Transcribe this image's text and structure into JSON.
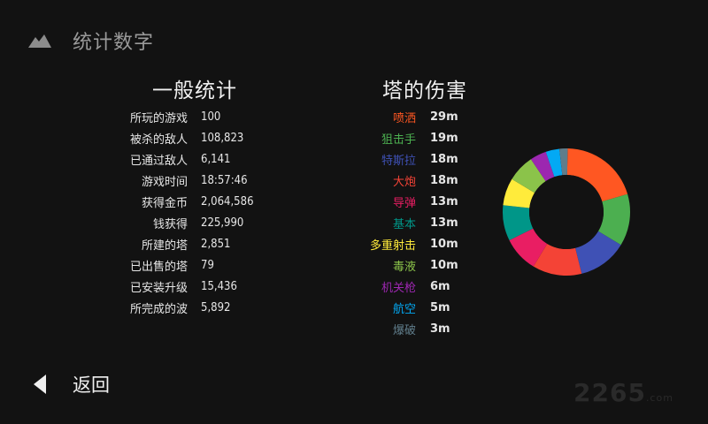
{
  "header": {
    "title": "统计数字"
  },
  "general": {
    "title": "一般统计",
    "rows": [
      {
        "label": "所玩的游戏",
        "value": "100"
      },
      {
        "label": "被杀的敌人",
        "value": "108,823"
      },
      {
        "label": "已通过敌人",
        "value": "6,141"
      },
      {
        "label": "游戏时间",
        "value": "18:57:46"
      },
      {
        "label": "获得金币",
        "value": "2,064,586"
      },
      {
        "label": "钱获得",
        "value": "225,990"
      },
      {
        "label": "所建的塔",
        "value": "2,851"
      },
      {
        "label": "已出售的塔",
        "value": "79"
      },
      {
        "label": "已安装升级",
        "value": "15,436"
      },
      {
        "label": "所完成的波",
        "value": "5,892"
      }
    ]
  },
  "damage": {
    "title": "塔的伤害",
    "towers": [
      {
        "name": "喷洒",
        "damage": "29m",
        "value": 29,
        "color": "#ff5722"
      },
      {
        "name": "狙击手",
        "damage": "19m",
        "value": 19,
        "color": "#4caf50"
      },
      {
        "name": "特斯拉",
        "damage": "18m",
        "value": 18,
        "color": "#3f51b5"
      },
      {
        "name": "大炮",
        "damage": "18m",
        "value": 18,
        "color": "#f44336"
      },
      {
        "name": "导弹",
        "damage": "13m",
        "value": 13,
        "color": "#e91e63"
      },
      {
        "name": "基本",
        "damage": "13m",
        "value": 13,
        "color": "#009688"
      },
      {
        "name": "多重射击",
        "damage": "10m",
        "value": 10,
        "color": "#ffeb3b"
      },
      {
        "name": "毒液",
        "damage": "10m",
        "value": 10,
        "color": "#8bc34a"
      },
      {
        "name": "机关枪",
        "damage": "6m",
        "value": 6,
        "color": "#9c27b0"
      },
      {
        "name": "航空",
        "damage": "5m",
        "value": 5,
        "color": "#03a9f4"
      },
      {
        "name": "爆破",
        "damage": "3m",
        "value": 3,
        "color": "#607d8b"
      }
    ]
  },
  "footer": {
    "back_label": "返回"
  },
  "watermark": {
    "text": "2265",
    "suffix": ".com"
  }
}
